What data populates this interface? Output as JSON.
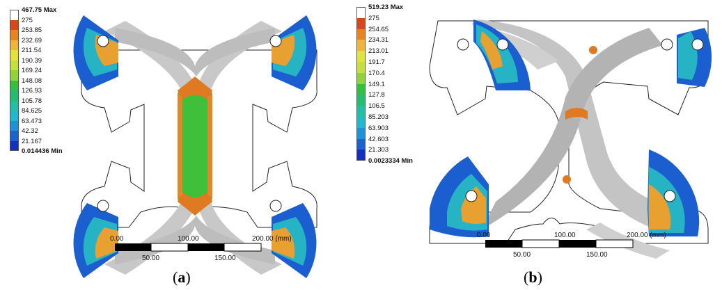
{
  "panels": [
    {
      "id": "a",
      "caption_open": "(",
      "caption_letter": "a",
      "caption_close": ")",
      "legend": {
        "labels": [
          "467.75 Max",
          "275",
          "253.85",
          "232.69",
          "211.54",
          "190.39",
          "169.24",
          "148.08",
          "126.93",
          "105.78",
          "84.625",
          "63.473",
          "42.32",
          "21.167",
          "0.014436 Min"
        ],
        "colors": [
          "#ffffff",
          "#d9461b",
          "#e8841e",
          "#f0b43a",
          "#e2e33a",
          "#c6df3a",
          "#8fd43a",
          "#33c042",
          "#22bd70",
          "#21c0a6",
          "#1fb9cf",
          "#1c93d8",
          "#1a62d0",
          "#1530c0"
        ]
      },
      "scale": {
        "top_labels": [
          "0.00",
          "100.00",
          "200.00 (mm)"
        ],
        "bottom_labels": [
          "50.00",
          "150.00"
        ]
      }
    },
    {
      "id": "b",
      "caption_open": "(",
      "caption_letter": "b",
      "caption_close": ")",
      "legend": {
        "labels": [
          "519.23 Max",
          "275",
          "254.65",
          "234.31",
          "213.01",
          "191.7",
          "170.4",
          "149.1",
          "127.8",
          "106.5",
          "85.203",
          "63.903",
          "42.603",
          "21.303",
          "0.0023334 Min"
        ],
        "colors": [
          "#ffffff",
          "#d9461b",
          "#e8841e",
          "#f0b43a",
          "#e2e33a",
          "#c6df3a",
          "#8fd43a",
          "#33c042",
          "#22bd70",
          "#21c0a6",
          "#1fb9cf",
          "#1c93d8",
          "#1a62d0",
          "#1530c0"
        ]
      },
      "scale": {
        "top_labels": [
          "0.00",
          "100.00",
          "200.00 (mm)"
        ],
        "bottom_labels": [
          "50.00",
          "150.00"
        ]
      }
    }
  ]
}
